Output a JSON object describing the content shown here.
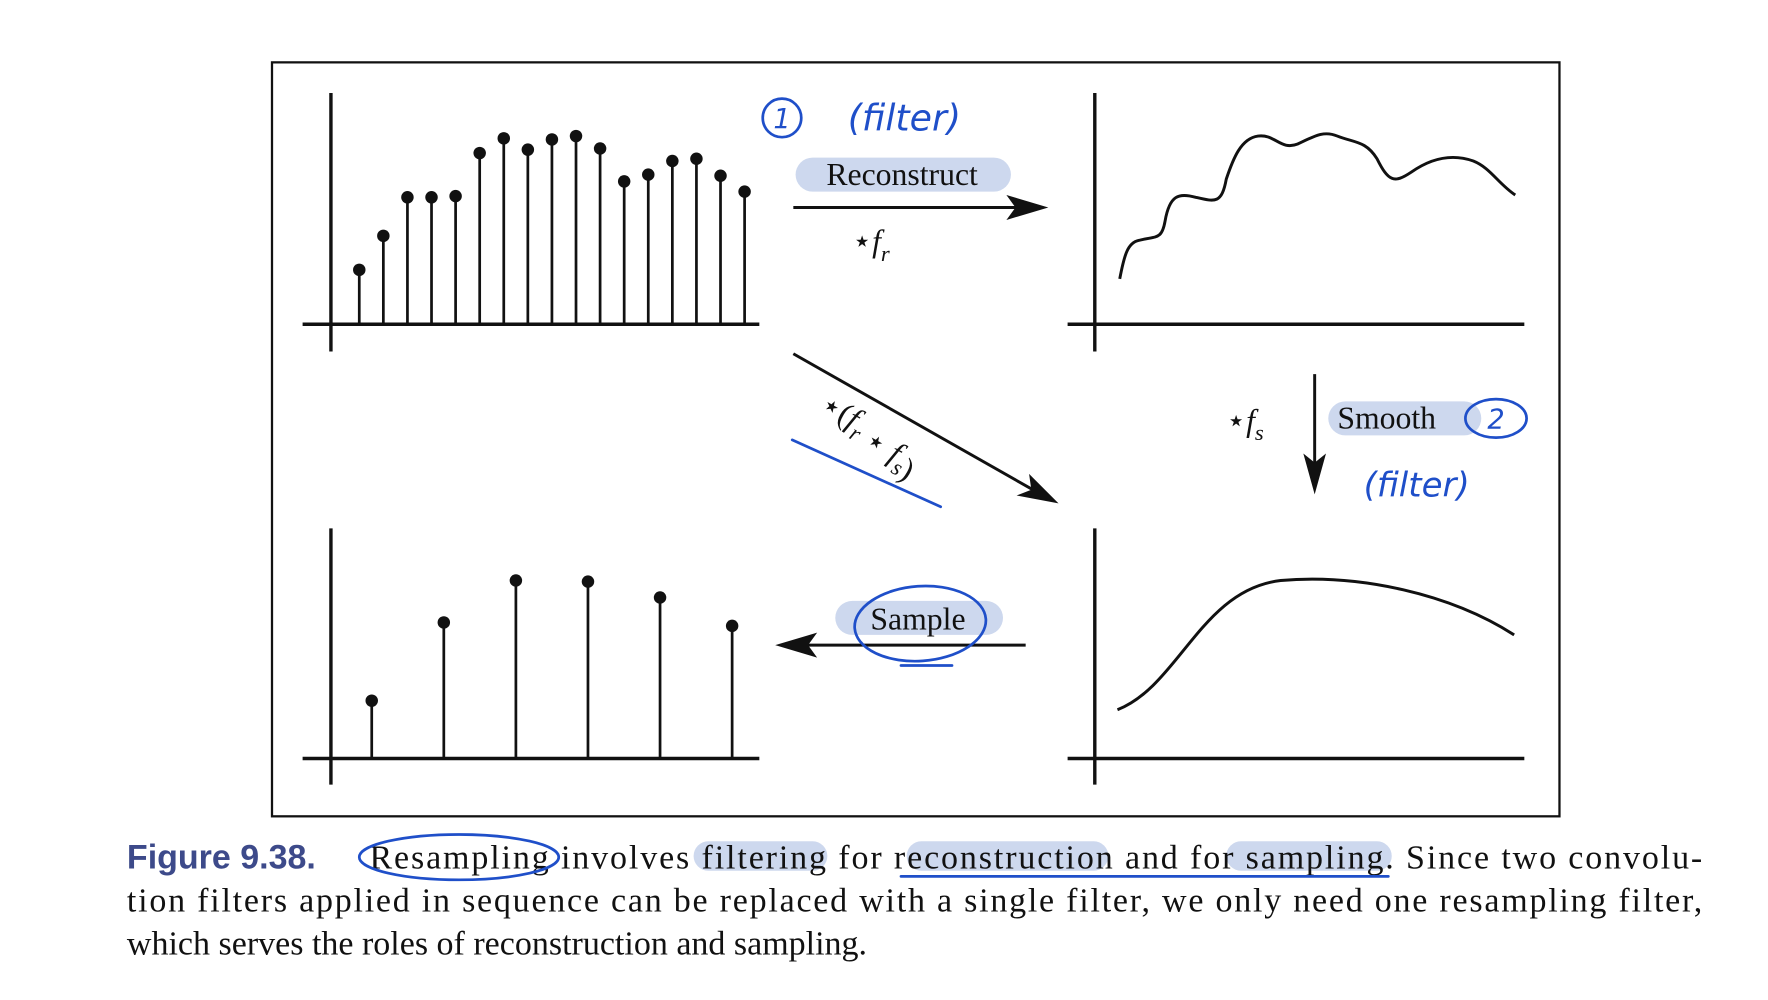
{
  "figure": {
    "top_arrow": {
      "label": "Reconstruct",
      "formula": [
        {
          "text": "⋆"
        },
        {
          "italic": "f"
        },
        {
          "sub": "r"
        }
      ]
    },
    "diagonal_arrow": {
      "formula": [
        {
          "text": "⋆("
        },
        {
          "italic": "f"
        },
        {
          "sub": "r"
        },
        {
          "text": " ⋆ "
        },
        {
          "italic": "f"
        },
        {
          "sub": "s"
        },
        {
          "text": ")"
        }
      ]
    },
    "down_arrow": {
      "label": "Smooth",
      "formula": [
        {
          "text": "⋆"
        },
        {
          "italic": "f"
        },
        {
          "sub": "s"
        }
      ]
    },
    "left_arrow": {
      "label": "Sample"
    },
    "annotations": {
      "step1": "1",
      "step1_note": "(filter)",
      "step2": "2",
      "step2_note": "(filter)"
    }
  },
  "caption": {
    "label": "Figure 9.38.",
    "line1": [
      "Resampling",
      " involves ",
      "filtering",
      " for ",
      "reconstruction",
      " and for ",
      "sampling",
      ". Since two convolu-"
    ],
    "line2": "tion filters applied in sequence can be replaced with a single filter, we only need one resampling filter,",
    "line3": "which serves the roles of reconstruction and sampling."
  }
}
